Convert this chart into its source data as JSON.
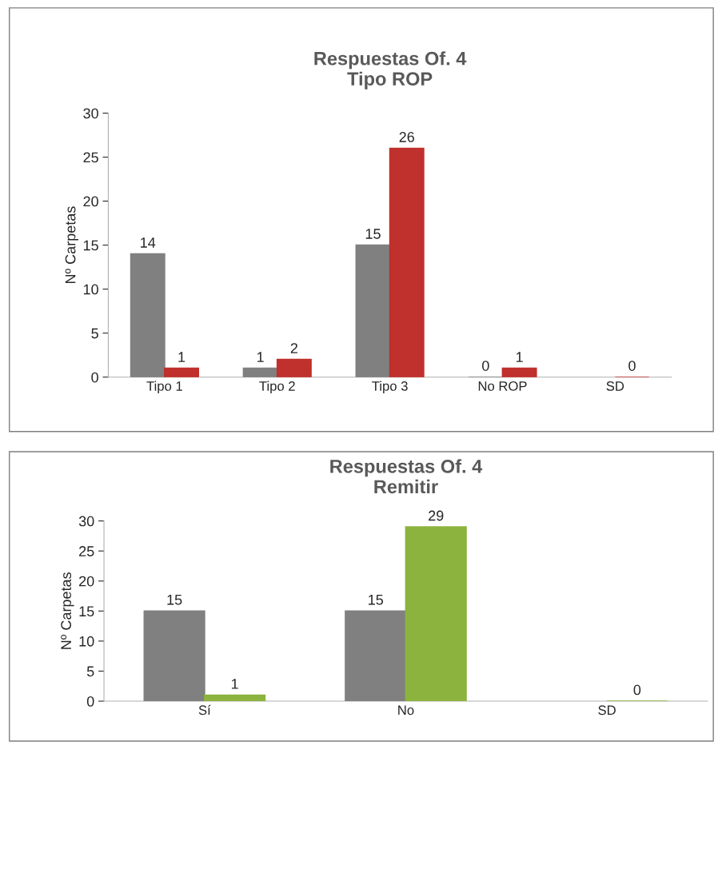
{
  "chart_data": [
    {
      "type": "bar",
      "title": "Respuestas Of. 4\nTipo ROP",
      "ylabel": "Nº Carpetas",
      "categories": [
        "Tipo 1",
        "Tipo 2",
        "Tipo 3",
        "No ROP",
        "SD"
      ],
      "series": [
        {
          "color": "#808080",
          "values": [
            14,
            1,
            15,
            0,
            null
          ]
        },
        {
          "color": "#c0302c",
          "values": [
            1,
            2,
            26,
            1,
            0
          ]
        }
      ],
      "ylim": [
        0,
        30
      ],
      "yticks": [
        0,
        5,
        10,
        15,
        20,
        25,
        30
      ],
      "grid": false,
      "legend": false,
      "data_labels": true
    },
    {
      "type": "bar",
      "title": "Respuestas Of. 4\nRemitir",
      "ylabel": "Nº Carpetas",
      "categories": [
        "Sí",
        "No",
        "SD"
      ],
      "series": [
        {
          "color": "#808080",
          "values": [
            15,
            15,
            null
          ]
        },
        {
          "color": "#8cb33e",
          "values": [
            1,
            29,
            0
          ]
        }
      ],
      "ylim": [
        0,
        30
      ],
      "yticks": [
        0,
        5,
        10,
        15,
        20,
        25,
        30
      ],
      "grid": false,
      "legend": false,
      "data_labels": true
    }
  ]
}
